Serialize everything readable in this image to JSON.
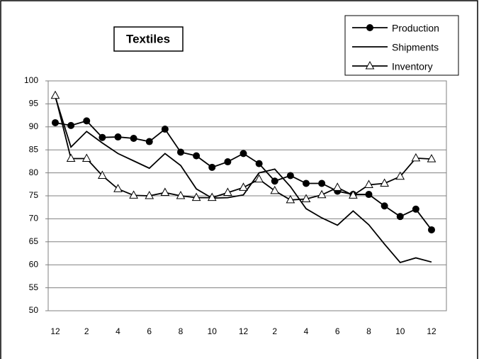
{
  "chart_data": {
    "type": "line",
    "title": "Textiles",
    "categories": [
      "12",
      null,
      "2",
      null,
      "4",
      null,
      "6",
      null,
      "8",
      null,
      "10",
      null,
      "12",
      null,
      "2",
      null,
      "4",
      null,
      "6",
      null,
      "8",
      null,
      "10",
      null,
      "12"
    ],
    "series": [
      {
        "name": "Production",
        "color": "#000000",
        "marker": "circle",
        "values": [
          90.9,
          90.3,
          91.3,
          87.7,
          87.8,
          87.5,
          86.8,
          89.5,
          84.5,
          83.7,
          81.2,
          82.4,
          84.2,
          82.0,
          78.2,
          79.4,
          77.7,
          77.7,
          76.0,
          75.3,
          75.3,
          72.8,
          70.5,
          72.1,
          67.6
        ]
      },
      {
        "name": "Shipments",
        "color": "#000000",
        "marker": "none",
        "values": [
          96.5,
          85.6,
          89.0,
          86.5,
          84.2,
          82.6,
          81.0,
          84.2,
          81.6,
          76.5,
          74.5,
          74.6,
          75.2,
          80.0,
          80.8,
          77.0,
          72.2,
          70.2,
          68.6,
          71.7,
          68.7,
          64.5,
          60.5,
          61.5,
          60.6
        ]
      },
      {
        "name": "Inventory",
        "color": "#000000",
        "marker": "triangle",
        "values": [
          96.8,
          83.1,
          83.1,
          79.4,
          76.5,
          75.1,
          75.0,
          75.7,
          75.0,
          74.6,
          74.6,
          75.7,
          76.8,
          78.6,
          76.1,
          74.1,
          74.3,
          75.2,
          76.8,
          75.1,
          77.4,
          77.7,
          79.2,
          83.2,
          83.0
        ]
      }
    ],
    "ylim": [
      50,
      100
    ],
    "yticks": [
      50,
      55,
      60,
      65,
      70,
      75,
      80,
      85,
      90,
      95,
      100
    ],
    "grid": true,
    "legend": "top-right"
  }
}
